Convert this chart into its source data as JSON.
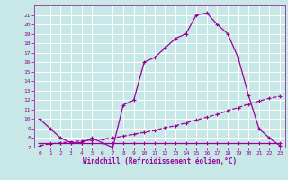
{
  "xlabel": "Windchill (Refroidissement éolien,°C)",
  "xlim": [
    -0.5,
    23.5
  ],
  "ylim": [
    7,
    22
  ],
  "yticks": [
    7,
    8,
    9,
    10,
    11,
    12,
    13,
    14,
    15,
    16,
    17,
    18,
    19,
    20,
    21
  ],
  "xticks": [
    0,
    1,
    2,
    3,
    4,
    5,
    6,
    7,
    8,
    9,
    10,
    11,
    12,
    13,
    14,
    15,
    16,
    17,
    18,
    19,
    20,
    21,
    22,
    23
  ],
  "bg_color": "#c8e8e8",
  "line_color": "#990099",
  "grid_color": "#ffffff",
  "line1_x": [
    0,
    1,
    2,
    3,
    4,
    5,
    6,
    7,
    8,
    9,
    10,
    11,
    12,
    13,
    14,
    15,
    16,
    17,
    18,
    19,
    20,
    21,
    22,
    23
  ],
  "line1_y": [
    10,
    9,
    8,
    7.5,
    7.5,
    8,
    7.5,
    7.0,
    11.5,
    12.0,
    16.0,
    16.5,
    17.5,
    18.5,
    19.0,
    21.0,
    21.2,
    20.0,
    19.0,
    16.5,
    12.5,
    9.0,
    8.0,
    7.2
  ],
  "line2_x": [
    0,
    1,
    2,
    3,
    4,
    5,
    6,
    7,
    8,
    9,
    10,
    11,
    12,
    13,
    14,
    15,
    16,
    17,
    18,
    19,
    20,
    21,
    22,
    23
  ],
  "line2_y": [
    7.2,
    7.4,
    7.5,
    7.6,
    7.7,
    7.8,
    7.9,
    8.0,
    8.2,
    8.4,
    8.6,
    8.8,
    9.1,
    9.3,
    9.6,
    9.9,
    10.2,
    10.5,
    10.9,
    11.2,
    11.6,
    11.9,
    12.2,
    12.4
  ],
  "line3_x": [
    0,
    1,
    2,
    3,
    4,
    5,
    6,
    7,
    8,
    9,
    10,
    11,
    12,
    13,
    14,
    15,
    16,
    17,
    18,
    19,
    20,
    21,
    22,
    23
  ],
  "line3_y": [
    7.5,
    7.5,
    7.5,
    7.5,
    7.5,
    7.5,
    7.5,
    7.5,
    7.5,
    7.5,
    7.5,
    7.5,
    7.5,
    7.5,
    7.5,
    7.5,
    7.5,
    7.5,
    7.5,
    7.5,
    7.5,
    7.5,
    7.5,
    7.5
  ],
  "label_fontsize": 4.5,
  "xlabel_fontsize": 5.5
}
